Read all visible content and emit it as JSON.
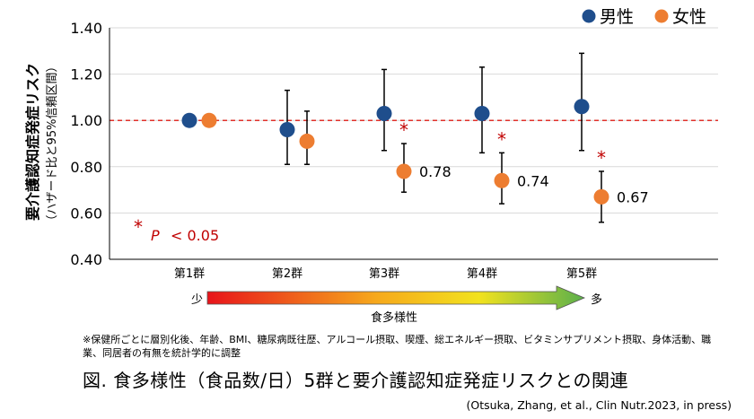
{
  "chart_data": {
    "type": "scatter",
    "ylabel_main": "要介護認知症発症リスク",
    "ylabel_sub": "（ハザード比と95%信頼区間）",
    "ylim": [
      0.4,
      1.4
    ],
    "yticks": [
      "0.40",
      "0.60",
      "0.80",
      "1.00",
      "1.20",
      "1.40"
    ],
    "ytick_values": [
      0.4,
      0.6,
      0.8,
      1.0,
      1.2,
      1.4
    ],
    "categories": [
      "第1群",
      "第2群",
      "第3群",
      "第4群",
      "第5群"
    ],
    "reference_line": 1.0,
    "grid": "horizontal",
    "legend_position": "top-right",
    "series": [
      {
        "name": "男性",
        "color": "#1f4e8c",
        "values": [
          1.0,
          0.96,
          1.03,
          1.03,
          1.06
        ],
        "ci_low": [
          null,
          0.81,
          0.87,
          0.86,
          0.87
        ],
        "ci_high": [
          null,
          1.13,
          1.22,
          1.23,
          1.29
        ]
      },
      {
        "name": "女性",
        "color": "#ed7d31",
        "values": [
          1.0,
          0.91,
          0.78,
          0.74,
          0.67
        ],
        "ci_low": [
          null,
          0.81,
          0.69,
          0.64,
          0.56
        ],
        "ci_high": [
          null,
          1.04,
          0.9,
          0.86,
          0.78
        ]
      }
    ],
    "value_labels": [
      "",
      "",
      "0.78",
      "0.74",
      "0.67"
    ],
    "significance_markers": [
      false,
      false,
      true,
      true,
      true
    ],
    "significance_legend": {
      "symbol": "*",
      "text": "P",
      "rest": "< 0.05"
    },
    "gradient_arrow": {
      "left": "少",
      "right": "多",
      "label": "食多様性",
      "colors": [
        "#e8141b",
        "#f6a91c",
        "#f2e21e",
        "#5bb04b"
      ]
    }
  },
  "footnote": "※保健所ごとに層別化後、年齢、BMI、糖尿病既往歴、アルコール摂取、喫煙、総エネルギー摂取、ビタミンサプリメント摂取、身体活動、職業、同居者の有無を統計学的に調整",
  "figure_title": "図. 食多様性（食品数/日）5群と要介護認知症発症リスクとの関連",
  "citation": "(Otsuka, Zhang, et al., Clin Nutr.2023, in press)"
}
